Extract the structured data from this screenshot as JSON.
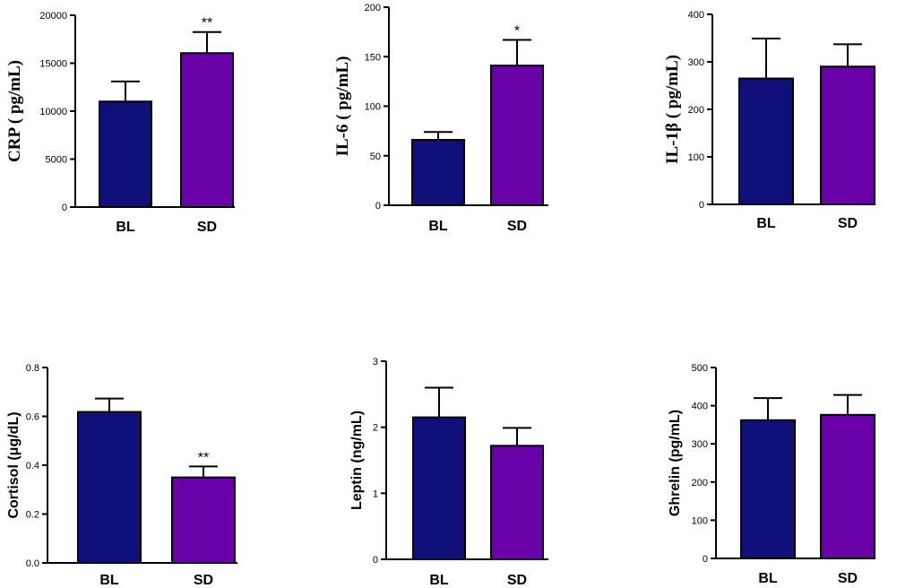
{
  "colors": {
    "BL": "#10107a",
    "SD": "#6a00a8",
    "axis": "#000000"
  },
  "chart_data": [
    {
      "type": "bar",
      "ylabel": "CRP ( pg/mL)",
      "categories": [
        "BL",
        "SD"
      ],
      "values": [
        11000,
        16050
      ],
      "errors": [
        2100,
        2200
      ],
      "significance": [
        "",
        "**"
      ],
      "ylim": [
        0,
        20000
      ],
      "yticks": [
        0,
        5000,
        10000,
        15000,
        20000
      ],
      "ytick_labels": [
        "0",
        "5000",
        "10000",
        "15000",
        "20000"
      ]
    },
    {
      "type": "bar",
      "ylabel": "IL-6 ( pg/mL)",
      "categories": [
        "BL",
        "SD"
      ],
      "values": [
        66,
        141
      ],
      "errors": [
        8,
        26
      ],
      "significance": [
        "",
        "*"
      ],
      "ylim": [
        0,
        200
      ],
      "yticks": [
        0,
        50,
        100,
        150,
        200
      ],
      "ytick_labels": [
        "0",
        "50",
        "100",
        "150",
        "200"
      ]
    },
    {
      "type": "bar",
      "ylabel": "IL-1β ( pg/mL)",
      "categories": [
        "BL",
        "SD"
      ],
      "values": [
        265,
        290
      ],
      "errors": [
        84,
        47
      ],
      "significance": [
        "",
        ""
      ],
      "ylim": [
        0,
        400
      ],
      "yticks": [
        0,
        100,
        200,
        300,
        400
      ],
      "ytick_labels": [
        "0",
        "100",
        "200",
        "300",
        "400"
      ]
    },
    {
      "type": "bar",
      "ylabel": "Cortisol (μg/dL)",
      "categories": [
        "BL",
        "SD"
      ],
      "values": [
        0.618,
        0.35
      ],
      "errors": [
        0.055,
        0.045
      ],
      "significance": [
        "",
        "**"
      ],
      "ylim": [
        0,
        0.8
      ],
      "yticks": [
        0,
        0.2,
        0.4,
        0.6,
        0.8
      ],
      "ytick_labels": [
        "0.0",
        "0.2",
        "0.4",
        "0.6",
        "0.8"
      ]
    },
    {
      "type": "bar",
      "ylabel": "Leptin (ng/mL)",
      "categories": [
        "BL",
        "SD"
      ],
      "values": [
        2.15,
        1.72
      ],
      "errors": [
        0.45,
        0.27
      ],
      "significance": [
        "",
        ""
      ],
      "ylim": [
        0,
        3
      ],
      "yticks": [
        0,
        1,
        2,
        3
      ],
      "ytick_labels": [
        "0",
        "1",
        "2",
        "3"
      ]
    },
    {
      "type": "bar",
      "ylabel": "Ghrelin (pg/mL)",
      "categories": [
        "BL",
        "SD"
      ],
      "values": [
        362,
        376
      ],
      "errors": [
        58,
        52
      ],
      "significance": [
        "",
        ""
      ],
      "ylim": [
        0,
        500
      ],
      "yticks": [
        0,
        100,
        200,
        300,
        400,
        500
      ],
      "ytick_labels": [
        "0",
        "100",
        "200",
        "300",
        "400",
        "500"
      ]
    }
  ]
}
